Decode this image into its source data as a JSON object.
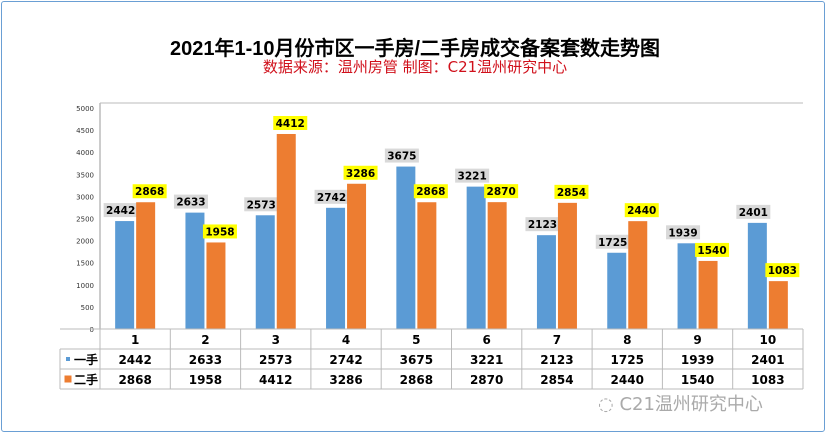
{
  "title": "2021年1-10月份市区一手房/二手房成交备案套数走势图",
  "subtitle": "数据来源：温州房管  制图：C21温州研究中心",
  "watermark": "C21温州研究中心",
  "chart_data": {
    "type": "bar",
    "categories": [
      "1",
      "2",
      "3",
      "4",
      "5",
      "6",
      "7",
      "8",
      "9",
      "10"
    ],
    "series": [
      {
        "name": "一手",
        "color": "#5b9bd5",
        "label_bg": "#d9d9d9",
        "values": [
          2442,
          2633,
          2573,
          2742,
          3675,
          3221,
          2123,
          1725,
          1939,
          2401
        ]
      },
      {
        "name": "二手",
        "color": "#ed7d31",
        "label_bg": "#ffff00",
        "values": [
          2868,
          1958,
          4412,
          3286,
          2868,
          2870,
          2854,
          2440,
          1540,
          1083
        ]
      }
    ],
    "ylim": [
      0,
      5000
    ],
    "yticks": [
      0,
      500,
      1000,
      1500,
      2000,
      2500,
      3000,
      3500,
      4000,
      4500,
      5000
    ],
    "grid": false,
    "legend": "data-table"
  }
}
